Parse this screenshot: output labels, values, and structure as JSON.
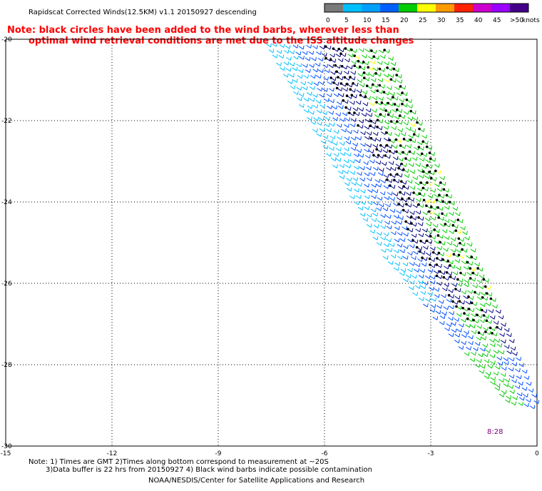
{
  "header": {
    "title": "Rapidscat Corrected Winds(12.5KM) v1.1 20150927 descending",
    "note": {
      "line1": "Note: black circles have been added to the wind barbs, wherever less than",
      "line2": "optimal wind retrieval conditions are met due to the ISS altitude changes"
    }
  },
  "legend": {
    "unit": "knots",
    "labels": [
      "0",
      "5",
      "10",
      "15",
      "20",
      "25",
      "30",
      "35",
      "40",
      "45",
      ">50"
    ],
    "colors": [
      "#7a7a7a",
      "#00bfff",
      "#00a0ff",
      "#0060ff",
      "#00cc00",
      "#ffff00",
      "#ff9900",
      "#ff2200",
      "#cc00cc",
      "#9900ff",
      "#440088"
    ]
  },
  "map": {
    "lat_labels": [
      "-20",
      "-22",
      "-24",
      "-26",
      "-28",
      "-30"
    ],
    "lon_labels": [
      "-15",
      "-12",
      "-9",
      "-6",
      "-3",
      "0"
    ],
    "time_label": "8:28",
    "lat_range": [
      -30,
      -20
    ],
    "lon_range": [
      -15,
      0
    ],
    "swath_colors": {
      "light_blue": "#00bfff",
      "blue": "#0050ff",
      "navy": "#000080",
      "green": "#00cc00",
      "yellow": "#ffff00",
      "contaminated": "#000000"
    }
  },
  "footer": {
    "line1": "Note: 1) Times are GMT 2)Times along bottom correspond to measurement at ~20S",
    "line2": "3)Data buffer is 22 hrs from 20150927 4) Black wind barbs indicate possible contamination",
    "line3": "NOAA/NESDIS/Center for Satellite Applications and Research"
  }
}
